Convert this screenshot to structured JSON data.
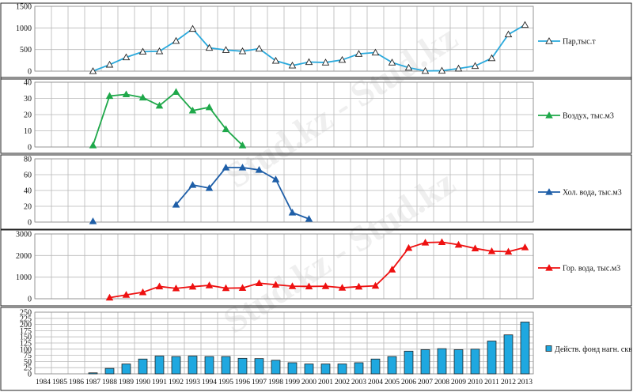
{
  "watermark": "Stud.kz - Stud.kz",
  "chart_data": {
    "type": "stacked-panels",
    "years": [
      "1984",
      "1985",
      "1986",
      "1987",
      "1988",
      "1989",
      "1990",
      "1991",
      "1992",
      "1993",
      "1994",
      "1995",
      "1996",
      "1997",
      "1998",
      "1999",
      "2000",
      "2001",
      "2002",
      "2003",
      "2004",
      "2005",
      "2006",
      "2007",
      "2008",
      "2009",
      "2010",
      "2011",
      "2012",
      "2013"
    ],
    "grid": true,
    "legend_placement": "right",
    "panels": [
      {
        "type": "line",
        "name": "Пар,тыс.т",
        "color": "#2aa9dc",
        "marker": "triangle-open",
        "ylim": [
          0,
          1500
        ],
        "yticks": [
          0,
          500,
          1000,
          1500
        ],
        "values": [
          null,
          null,
          null,
          0,
          150,
          320,
          450,
          460,
          700,
          980,
          540,
          490,
          460,
          520,
          240,
          130,
          210,
          200,
          260,
          400,
          430,
          200,
          80,
          5,
          10,
          60,
          120,
          300,
          850,
          1070
        ]
      },
      {
        "type": "line",
        "name": "Воздух, тыс.м3",
        "color": "#1fa84a",
        "marker": "triangle-filled",
        "ylim": [
          0,
          40
        ],
        "yticks": [
          0,
          10,
          20,
          30,
          40
        ],
        "values": [
          null,
          null,
          null,
          1,
          31.5,
          32.5,
          30.5,
          25.5,
          34,
          22.5,
          24.5,
          11,
          1,
          null,
          null,
          null,
          null,
          null,
          null,
          null,
          null,
          null,
          null,
          null,
          null,
          null,
          null,
          null,
          null,
          null
        ]
      },
      {
        "type": "line",
        "name": "Хол. вода, тыс.м3",
        "color": "#1f5fa8",
        "marker": "triangle-filled",
        "ylim": [
          0,
          80
        ],
        "yticks": [
          0,
          20,
          40,
          60,
          80
        ],
        "values": [
          null,
          null,
          null,
          1,
          null,
          null,
          null,
          null,
          22,
          47,
          43,
          69,
          69,
          66,
          54,
          12,
          4,
          null,
          null,
          null,
          null,
          null,
          null,
          null,
          null,
          null,
          null,
          null,
          null,
          null
        ]
      },
      {
        "type": "line",
        "name": "Гор. вода, тыс.м3",
        "color": "#ee1111",
        "marker": "triangle-filled",
        "ylim": [
          0,
          3000
        ],
        "yticks": [
          0,
          1000,
          2000,
          3000
        ],
        "values": [
          null,
          null,
          null,
          null,
          50,
          180,
          300,
          570,
          480,
          560,
          620,
          490,
          500,
          720,
          650,
          580,
          570,
          580,
          510,
          560,
          600,
          1350,
          2350,
          2600,
          2620,
          2500,
          2330,
          2200,
          2180,
          2380
        ]
      },
      {
        "type": "bar",
        "name": "Действ. фонд нагн. скв",
        "color": "#1fa8e0",
        "ylim": [
          0,
          250
        ],
        "yticks": [
          0,
          25,
          50,
          75,
          100,
          125,
          150,
          175,
          200,
          225,
          250
        ],
        "values": [
          0,
          0,
          0,
          4,
          22,
          40,
          60,
          72,
          70,
          72,
          70,
          70,
          63,
          62,
          55,
          45,
          40,
          40,
          40,
          45,
          60,
          70,
          92,
          98,
          102,
          98,
          100,
          133,
          158,
          210
        ]
      }
    ]
  }
}
